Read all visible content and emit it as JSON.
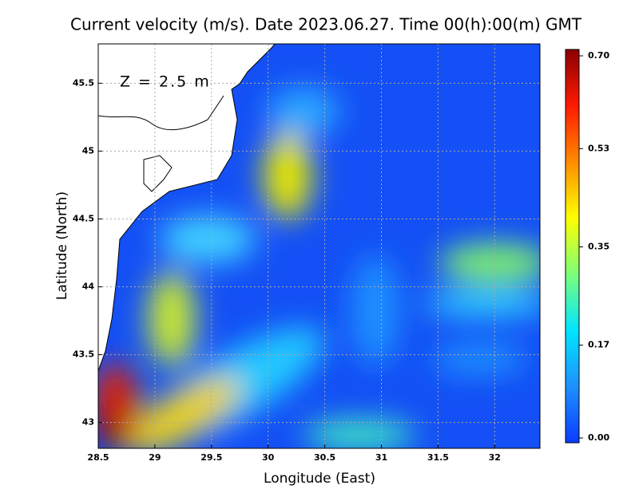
{
  "chart_data": {
    "type": "field",
    "title": "Current velocity (m/s). Date 2023.06.27. Time 00(h):00(m) GMT",
    "annotation": "Z = 2.5 m",
    "xlabel": "Longitude (East)",
    "ylabel": "Latitude (North)",
    "xlim": [
      28.5,
      32.4
    ],
    "ylim": [
      42.81,
      45.79
    ],
    "xticks": [
      28.5,
      29,
      29.5,
      30,
      30.5,
      31,
      31.5,
      32
    ],
    "yticks": [
      43,
      43.5,
      44,
      44.5,
      45,
      45.5
    ],
    "grid": true,
    "colorbar": {
      "lim": [
        0,
        0.7
      ],
      "ticks": [
        {
          "value": 0,
          "label": "0.00"
        },
        {
          "value": 0.17,
          "label": "0.17"
        },
        {
          "value": 0.35,
          "label": "0.35"
        },
        {
          "value": 0.53,
          "label": "0.53"
        },
        {
          "value": 0.7,
          "label": "0.70"
        }
      ],
      "colors": [
        "#0a3cff",
        "#1e90ff",
        "#00e5ff",
        "#7cff7a",
        "#ffff00",
        "#ff8c00",
        "#ff1a00",
        "#8b0000"
      ]
    }
  }
}
